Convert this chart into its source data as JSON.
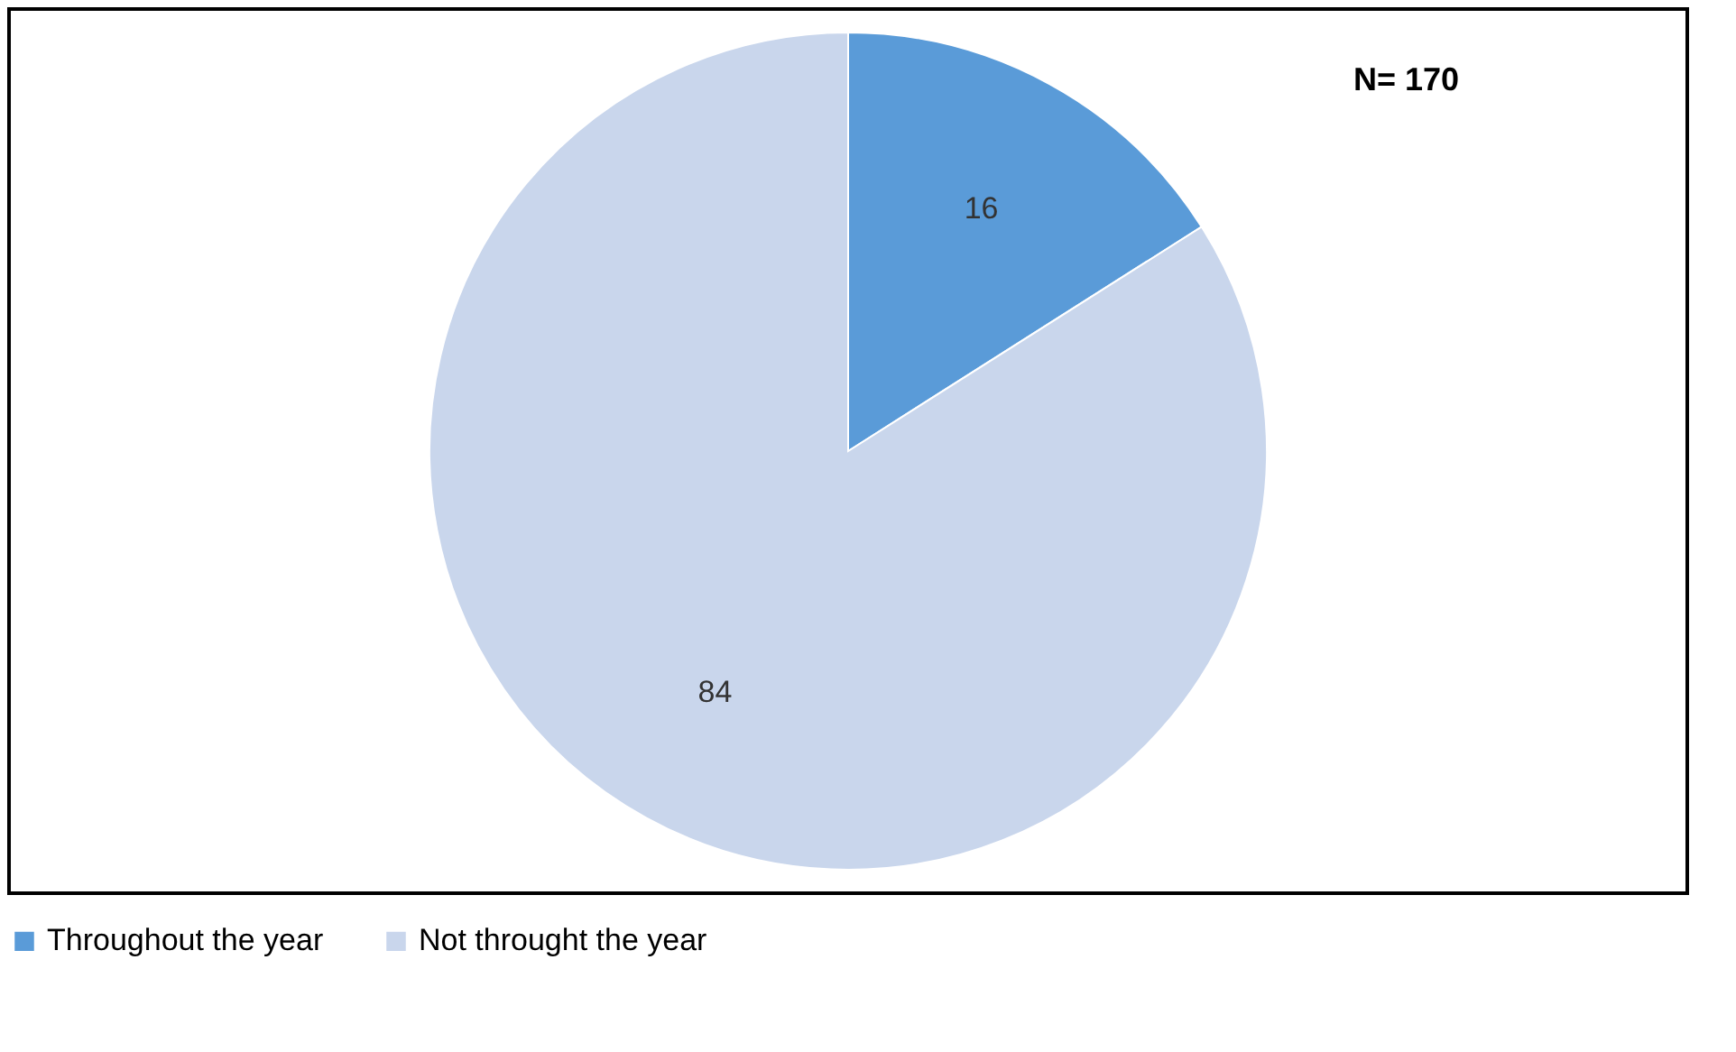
{
  "chart_data": {
    "type": "pie",
    "categories": [
      "Throughout the year",
      "Not throught the year"
    ],
    "values": [
      16,
      84
    ],
    "colors": [
      "#5a9bd8",
      "#c9d6ec"
    ],
    "data_labels": true,
    "legend": "bottom",
    "annotations": [
      "N= 170"
    ]
  }
}
